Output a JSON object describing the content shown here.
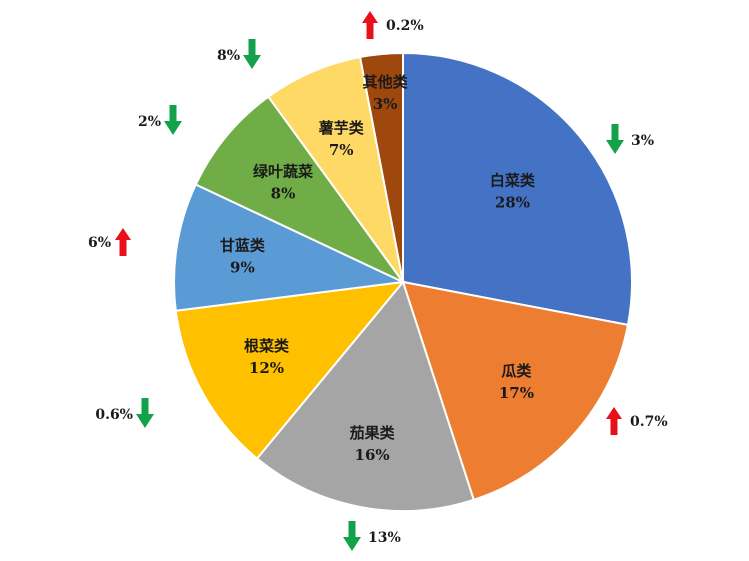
{
  "chart_data": {
    "type": "pie",
    "slices": [
      {
        "name": "白菜类",
        "label": "28%",
        "value": 28,
        "color": "#4472C4",
        "change": "3%",
        "direction": "down"
      },
      {
        "name": "瓜类",
        "label": "17%",
        "value": 17,
        "color": "#ED7D31",
        "change": "0.7%",
        "direction": "up"
      },
      {
        "name": "茄果类",
        "label": "16%",
        "value": 16,
        "color": "#A5A5A5",
        "change": "13%",
        "direction": "down"
      },
      {
        "name": "根菜类",
        "label": "12%",
        "value": 12,
        "color": "#FFC000",
        "change": "0.6%",
        "direction": "down"
      },
      {
        "name": "甘蓝类",
        "label": "9%",
        "value": 9,
        "color": "#5B9BD5",
        "change": "6%",
        "direction": "up"
      },
      {
        "name": "绿叶蔬菜",
        "label": "8%",
        "value": 8,
        "color": "#70AD47",
        "change": "2%",
        "direction": "down"
      },
      {
        "name": "薯芋类",
        "label": "7%",
        "value": 7,
        "color": "#FFD966",
        "change": "8%",
        "direction": "down"
      },
      {
        "name": "其他类",
        "label": "3%",
        "value": 3,
        "color": "#9E480E",
        "change": "0.2%",
        "direction": "up"
      }
    ],
    "arrow_colors": {
      "up": "#E8101A",
      "down": "#13A24B"
    }
  }
}
